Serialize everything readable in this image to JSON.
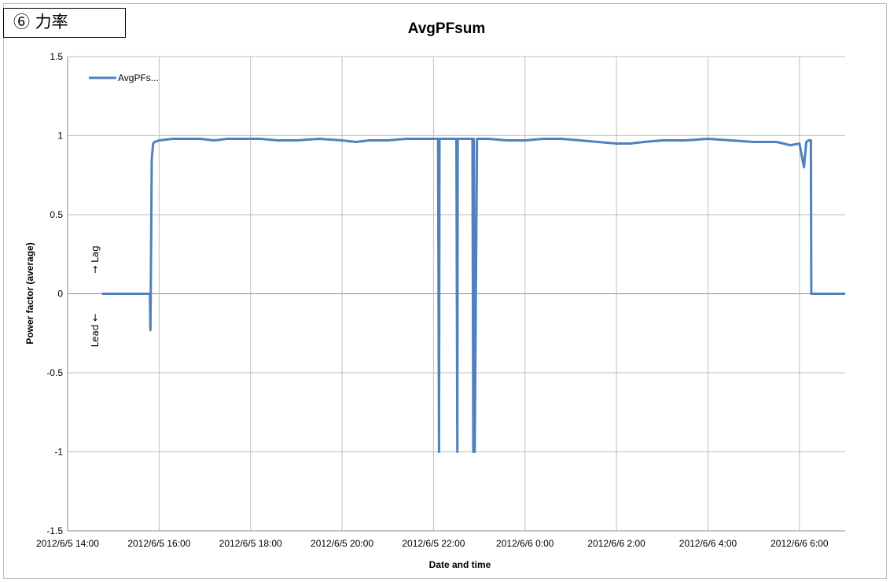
{
  "section_label": "⑥ 力率",
  "chart_data": {
    "type": "line",
    "title": "AvgPFsum",
    "xlabel": "Date and time",
    "ylabel": "Power factor (average)",
    "ylim": [
      -1.5,
      1.5
    ],
    "y_ticks": [
      1.5,
      1,
      0.5,
      0,
      -0.5,
      -1,
      -1.5
    ],
    "y_tick_labels": [
      "1.5",
      "1",
      "0.5",
      "0",
      "-0.5",
      "-1",
      "-1.5"
    ],
    "x_unit": "hours",
    "xlim": [
      14.0,
      31.0
    ],
    "x_ticks": [
      14,
      16,
      18,
      20,
      22,
      24,
      26,
      28,
      30
    ],
    "x_tick_labels": [
      "2012/6/5 14:00",
      "2012/6/5 16:00",
      "2012/6/5 18:00",
      "2012/6/5 20:00",
      "2012/6/5 22:00",
      "2012/6/6 0:00",
      "2012/6/6 2:00",
      "2012/6/6 4:00",
      "2012/6/6 6:00"
    ],
    "grid": true,
    "legend_position": "top-left",
    "annotations": {
      "lag": "→ Lag",
      "lead": "Lead ←"
    },
    "series": [
      {
        "name": "AvgPFs...",
        "color": "#4f81bd",
        "x": [
          14.75,
          15.8,
          15.81,
          15.82,
          15.84,
          15.87,
          15.9,
          16.0,
          16.3,
          16.6,
          16.9,
          17.2,
          17.5,
          17.8,
          18.2,
          18.6,
          19.0,
          19.5,
          20.0,
          20.3,
          20.6,
          21.0,
          21.4,
          21.8,
          22.1,
          22.12,
          22.13,
          22.2,
          22.5,
          22.52,
          22.53,
          22.6,
          22.85,
          22.87,
          22.88,
          22.9,
          22.95,
          23.2,
          23.6,
          24.0,
          24.4,
          24.8,
          25.2,
          25.6,
          26.0,
          26.3,
          26.6,
          27.0,
          27.5,
          28.0,
          28.5,
          29.0,
          29.5,
          29.8,
          30.0,
          30.1,
          30.15,
          30.2,
          30.25,
          30.26,
          30.3,
          31.0
        ],
        "y": [
          0,
          0,
          -0.23,
          0.1,
          0.85,
          0.95,
          0.96,
          0.97,
          0.98,
          0.98,
          0.98,
          0.97,
          0.98,
          0.98,
          0.98,
          0.97,
          0.97,
          0.98,
          0.97,
          0.96,
          0.97,
          0.97,
          0.98,
          0.98,
          0.98,
          -1,
          0.98,
          0.98,
          0.98,
          -1,
          0.98,
          0.98,
          0.98,
          -1,
          0.98,
          -1,
          0.98,
          0.98,
          0.97,
          0.97,
          0.98,
          0.98,
          0.97,
          0.96,
          0.95,
          0.95,
          0.96,
          0.97,
          0.97,
          0.98,
          0.97,
          0.96,
          0.96,
          0.94,
          0.95,
          0.8,
          0.96,
          0.97,
          0.97,
          0,
          0,
          0
        ]
      }
    ]
  }
}
